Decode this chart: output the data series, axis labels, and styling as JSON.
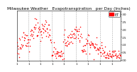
{
  "title": "Milwaukee Weather   Evapotranspiration   per Day (Inches)",
  "title_fontsize": 4.2,
  "background_color": "#ffffff",
  "plot_bg_color": "#ffffff",
  "dot_color": "#ff0000",
  "dot_size": 1.2,
  "legend_rect_color": "#ff0000",
  "legend_label": "ET",
  "legend_label_fontsize": 3.5,
  "ylim": [
    -0.005,
    0.32
  ],
  "ytick_fontsize": 3.0,
  "xtick_fontsize": 2.8,
  "grid_color": "#999999",
  "grid_style": "--",
  "grid_linewidth": 0.4,
  "vline_positions": [
    31,
    59,
    90,
    120,
    151,
    181,
    212,
    243
  ],
  "vline_color": "#aaaaaa",
  "ytick_positions": [
    0.0,
    0.05,
    0.1,
    0.15,
    0.2,
    0.25,
    0.3
  ],
  "ytick_labels": [
    ".00",
    ".05",
    ".10",
    ".15",
    ".20",
    ".25",
    ".30"
  ]
}
